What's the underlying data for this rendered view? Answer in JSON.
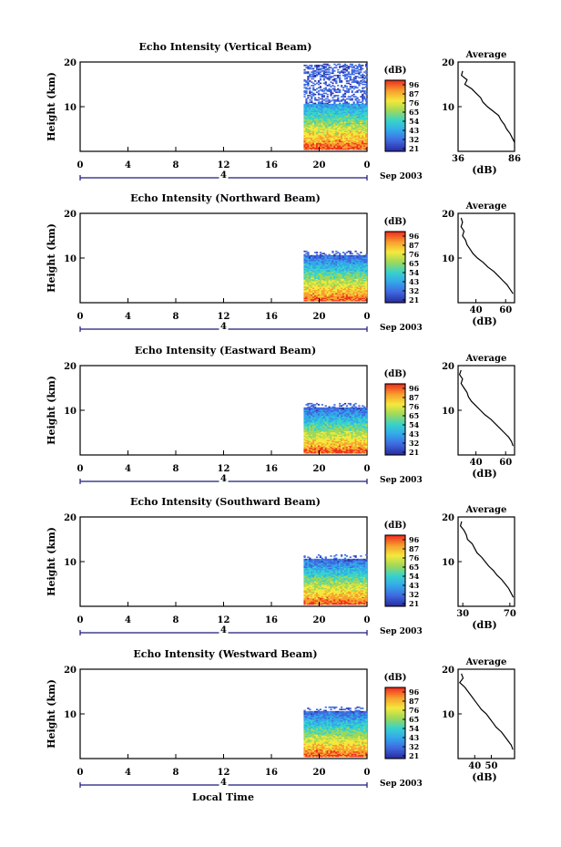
{
  "figure": {
    "date_label": "Sep 2003",
    "x_axis_title": "Local Time",
    "colorbar_unit": "(dB)",
    "colorbar_ticks": [
      "96",
      "87",
      "76",
      "65",
      "54",
      "43",
      "32",
      "21"
    ],
    "colorbar_colors": [
      "#f0341e",
      "#f7a12f",
      "#f4e93c",
      "#9ed85a",
      "#38d3cb",
      "#33a8ea",
      "#3f6ae0",
      "#2b2fa6"
    ],
    "avg_title": "Average",
    "avg_xlabel": "(dB)",
    "height_label": "Height (km)",
    "time_ticks": [
      "0",
      "4",
      "8",
      "12",
      "16",
      "20",
      "0"
    ],
    "time_values": [
      0,
      4,
      8,
      12,
      16,
      20,
      24
    ],
    "height_ticks": [
      "20",
      "10"
    ],
    "height_values": [
      20,
      10
    ],
    "day_marker": "4"
  },
  "chart_data": [
    {
      "type": "heatmap",
      "title": "Echo Intensity (Vertical Beam)",
      "xlabel": "",
      "ylabel": "Height (km)",
      "x_range": [
        0,
        24
      ],
      "y_range": [
        0,
        20
      ],
      "data_start_hour": 18.7,
      "avg_profile": {
        "type": "line",
        "title": "Average",
        "xlabel": "(dB)",
        "xlim": [
          36,
          86
        ],
        "x_ticks": [
          "36",
          "86"
        ],
        "x_tick_values": [
          36,
          86
        ],
        "height": [
          18,
          17,
          16,
          15,
          14,
          13,
          12,
          11,
          10,
          9,
          8,
          7,
          6,
          5,
          4,
          3,
          2
        ],
        "values": [
          40,
          39,
          44,
          42,
          48,
          52,
          56,
          58,
          62,
          67,
          72,
          74,
          77,
          79,
          82,
          84,
          86
        ]
      }
    },
    {
      "type": "heatmap",
      "title": "Echo Intensity (Northward Beam)",
      "xlabel": "",
      "ylabel": "Height (km)",
      "x_range": [
        0,
        24
      ],
      "y_range": [
        0,
        20
      ],
      "data_start_hour": 18.7,
      "avg_profile": {
        "type": "line",
        "title": "Average",
        "xlabel": "(dB)",
        "xlim": [
          28,
          66
        ],
        "x_ticks": [
          "40",
          "60"
        ],
        "x_tick_values": [
          40,
          60
        ],
        "height": [
          19,
          18,
          17,
          16,
          15,
          14,
          13,
          12,
          11,
          10,
          9,
          8,
          7,
          6,
          5,
          4,
          3,
          2
        ],
        "values": [
          30,
          31,
          30,
          32,
          31,
          33,
          34,
          36,
          38,
          41,
          45,
          48,
          52,
          55,
          58,
          61,
          63,
          65
        ]
      }
    },
    {
      "type": "heatmap",
      "title": "Echo Intensity (Eastward Beam)",
      "xlabel": "",
      "ylabel": "Height (km)",
      "x_range": [
        0,
        24
      ],
      "y_range": [
        0,
        20
      ],
      "data_start_hour": 18.7,
      "avg_profile": {
        "type": "line",
        "title": "Average",
        "xlabel": "(dB)",
        "xlim": [
          28,
          66
        ],
        "x_ticks": [
          "40",
          "60"
        ],
        "x_tick_values": [
          40,
          60
        ],
        "height": [
          19,
          18,
          17,
          16,
          15,
          14,
          13,
          12,
          11,
          10,
          9,
          8,
          7,
          6,
          5,
          4,
          3,
          2
        ],
        "values": [
          30,
          29,
          31,
          30,
          32,
          34,
          35,
          37,
          40,
          43,
          46,
          50,
          53,
          56,
          59,
          62,
          64,
          65
        ]
      }
    },
    {
      "type": "heatmap",
      "title": "Echo Intensity (Southward Beam)",
      "xlabel": "",
      "ylabel": "Height (km)",
      "x_range": [
        0,
        24
      ],
      "y_range": [
        0,
        20
      ],
      "data_start_hour": 18.7,
      "avg_profile": {
        "type": "line",
        "title": "Average",
        "xlabel": "(dB)",
        "xlim": [
          26,
          74
        ],
        "x_ticks": [
          "30",
          "70"
        ],
        "x_tick_values": [
          30,
          70
        ],
        "height": [
          19,
          18,
          17,
          16,
          15,
          14,
          13,
          12,
          11,
          10,
          9,
          8,
          7,
          6,
          5,
          4,
          3,
          2
        ],
        "values": [
          29,
          28,
          31,
          33,
          34,
          38,
          40,
          42,
          46,
          49,
          52,
          56,
          59,
          63,
          66,
          69,
          71,
          73
        ]
      }
    },
    {
      "type": "heatmap",
      "title": "Echo Intensity (Westward Beam)",
      "xlabel": "",
      "ylabel": "Height (km)",
      "x_range": [
        0,
        24
      ],
      "y_range": [
        0,
        20
      ],
      "data_start_hour": 18.7,
      "avg_profile": {
        "type": "line",
        "title": "Average",
        "xlabel": "(dB)",
        "xlim": [
          30,
          64
        ],
        "x_ticks": [
          "40",
          "50"
        ],
        "x_tick_values": [
          40,
          50
        ],
        "height": [
          19,
          18,
          17,
          16,
          15,
          14,
          13,
          12,
          11,
          10,
          9,
          8,
          7,
          6,
          5,
          4,
          3,
          2
        ],
        "values": [
          32,
          33,
          31,
          34,
          36,
          38,
          40,
          42,
          44,
          47,
          49,
          51,
          53,
          56,
          58,
          60,
          62,
          63
        ]
      }
    }
  ]
}
